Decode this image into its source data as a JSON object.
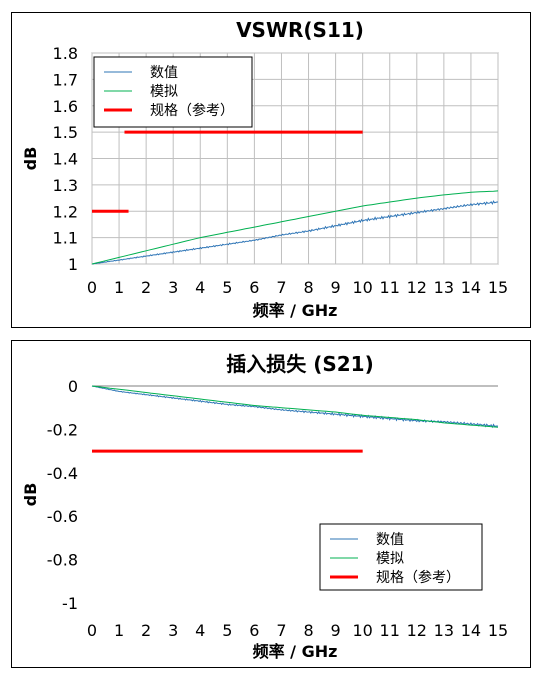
{
  "charts": [
    {
      "id": "s11",
      "title": "VSWR(S11)",
      "xlabel": "频率 / GHz",
      "ylabel": "dB",
      "legend": {
        "placement": "top-left",
        "entries": [
          {
            "label": "数值",
            "color": "#2e75b6"
          },
          {
            "label": "模拟",
            "color": "#00b050"
          },
          {
            "label": "规格（参考）",
            "color": "#ff0000"
          }
        ]
      },
      "x_ticks": [
        "0",
        "1",
        "2",
        "3",
        "4",
        "5",
        "6",
        "7",
        "8",
        "9",
        "10",
        "11",
        "12",
        "13",
        "14",
        "15"
      ],
      "y_ticks": [
        "1",
        "1.1",
        "1.2",
        "1.3",
        "1.4",
        "1.5",
        "1.6",
        "1.7",
        "1.8"
      ]
    },
    {
      "id": "s21",
      "title": "插入损失 (S21)",
      "xlabel": "频率 / GHz",
      "ylabel": "dB",
      "legend": {
        "placement": "bottom-right",
        "entries": [
          {
            "label": "数值",
            "color": "#2e75b6"
          },
          {
            "label": "模拟",
            "color": "#00b050"
          },
          {
            "label": "规格（参考）",
            "color": "#ff0000"
          }
        ]
      },
      "x_ticks": [
        "0",
        "1",
        "2",
        "3",
        "4",
        "5",
        "6",
        "7",
        "8",
        "9",
        "10",
        "11",
        "12",
        "13",
        "14",
        "15"
      ],
      "y_ticks": [
        "0",
        "-0.2",
        "-0.4",
        "-0.6",
        "-0.8",
        "-1"
      ]
    }
  ],
  "chart_data": [
    {
      "type": "line",
      "title": "VSWR(S11)",
      "xlabel": "频率 / GHz",
      "ylabel": "dB",
      "xlim": [
        0,
        15
      ],
      "ylim": [
        1,
        1.8
      ],
      "grid": true,
      "series": [
        {
          "name": "数值",
          "color": "#2e75b6",
          "x": [
            0,
            1,
            2,
            3,
            4,
            5,
            6,
            7,
            8,
            9,
            10,
            11,
            12,
            13,
            14,
            15
          ],
          "y": [
            1.0,
            1.015,
            1.03,
            1.045,
            1.06,
            1.075,
            1.09,
            1.11,
            1.125,
            1.145,
            1.165,
            1.18,
            1.195,
            1.21,
            1.225,
            1.235
          ]
        },
        {
          "name": "模拟",
          "color": "#00b050",
          "x": [
            0,
            1,
            2,
            3,
            4,
            5,
            6,
            7,
            8,
            9,
            10,
            11,
            12,
            13,
            14,
            15
          ],
          "y": [
            1.0,
            1.025,
            1.05,
            1.075,
            1.1,
            1.12,
            1.14,
            1.16,
            1.18,
            1.2,
            1.22,
            1.235,
            1.25,
            1.262,
            1.272,
            1.277
          ]
        },
        {
          "name": "规格（参考）",
          "color": "#ff0000",
          "segments": [
            {
              "x": [
                0,
                1.35
              ],
              "y": [
                1.2,
                1.2
              ]
            },
            {
              "x": [
                1.2,
                10
              ],
              "y": [
                1.5,
                1.5
              ]
            }
          ]
        }
      ]
    },
    {
      "type": "line",
      "title": "插入损失 (S21)",
      "xlabel": "频率 / GHz",
      "ylabel": "dB",
      "xlim": [
        0,
        15
      ],
      "ylim": [
        -1,
        0
      ],
      "grid": false,
      "series": [
        {
          "name": "数值",
          "color": "#2e75b6",
          "x": [
            0,
            1,
            2,
            3,
            4,
            5,
            6,
            7,
            8,
            9,
            10,
            11,
            12,
            13,
            14,
            15
          ],
          "y": [
            0,
            -0.025,
            -0.04,
            -0.055,
            -0.07,
            -0.085,
            -0.095,
            -0.11,
            -0.12,
            -0.13,
            -0.14,
            -0.15,
            -0.16,
            -0.165,
            -0.175,
            -0.185
          ]
        },
        {
          "name": "模拟",
          "color": "#00b050",
          "x": [
            0,
            1,
            2,
            3,
            4,
            5,
            6,
            7,
            8,
            9,
            10,
            11,
            12,
            13,
            14,
            15
          ],
          "y": [
            0,
            -0.015,
            -0.03,
            -0.045,
            -0.06,
            -0.075,
            -0.09,
            -0.1,
            -0.11,
            -0.12,
            -0.135,
            -0.145,
            -0.155,
            -0.17,
            -0.18,
            -0.19
          ]
        },
        {
          "name": "规格（参考）",
          "color": "#ff0000",
          "segments": [
            {
              "x": [
                0,
                10
              ],
              "y": [
                -0.3,
                -0.3
              ]
            }
          ]
        }
      ]
    }
  ]
}
